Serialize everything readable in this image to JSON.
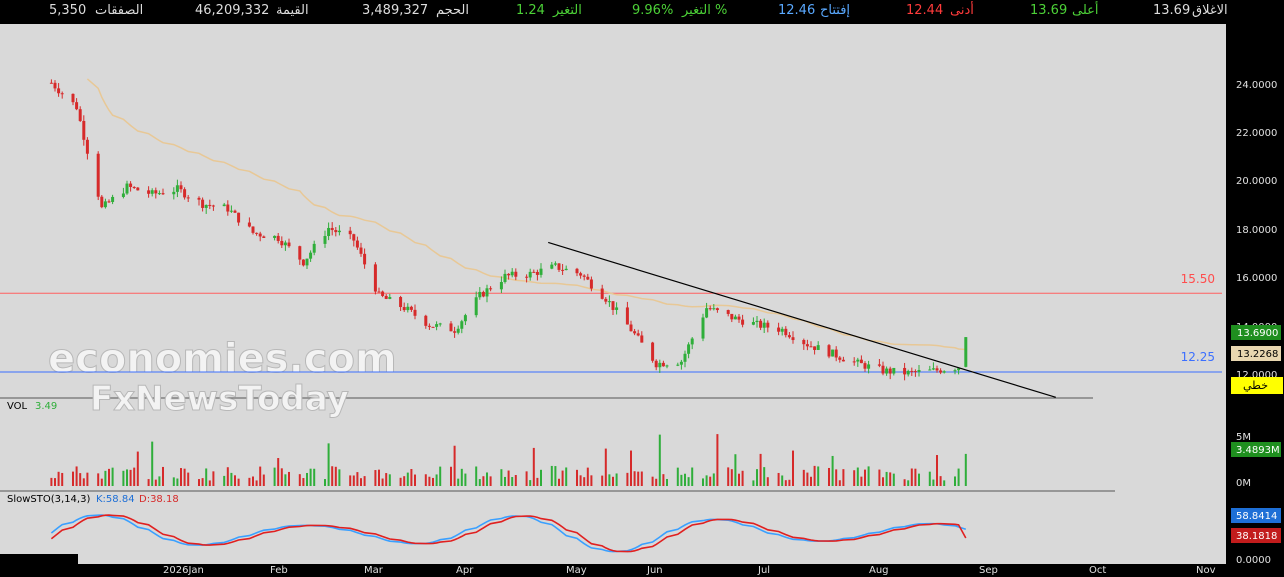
{
  "quote_bar": {
    "close_label": "الاغلاق",
    "close_value": "13.69",
    "high_label": "أعلى",
    "high_value": "13.69",
    "low_label": "أدنى",
    "low_value": "12.44",
    "open_label": "إفتتاح",
    "open_value": "12.46",
    "change_pct_label": "التغير %",
    "change_pct_value": "9.96%",
    "change_label": "التغير",
    "change_value": "1.24",
    "volume_label": "الحجم",
    "volume_value": "3,489,327",
    "value_label": "القيمة",
    "value_value": "46,209,332",
    "trades_label": "الصفقات",
    "trades_value": "5,350"
  },
  "watermark": {
    "line1": "economies.com",
    "line2": "FxNewsToday"
  },
  "price_panel": {
    "y_ticks": [
      "24.0000",
      "22.0000",
      "20.0000",
      "18.0000",
      "16.0000",
      "14.0000",
      "12.0000"
    ],
    "resistance_label": "15.50",
    "support_label": "12.25",
    "last_price_tag": "13.6900",
    "ma_tag": "13.2268",
    "trendline_tag": "خطي"
  },
  "volume_panel": {
    "label": "VOL",
    "value": "3.49",
    "y_ticks": [
      "5M",
      "0M"
    ],
    "last_tag": "3.4893M"
  },
  "stoch_panel": {
    "label": "SlowSTO(3,14,3)",
    "k_text": "K:58.84",
    "d_text": "D:38.18",
    "y_ticks": [
      "0.0000"
    ],
    "k_tag": "58.8414",
    "d_tag": "38.1818"
  },
  "x_axis": {
    "months": [
      "2026Jan",
      "Feb",
      "Mar",
      "Apr",
      "May",
      "Jun",
      "Jul",
      "Aug",
      "Sep",
      "Oct",
      "Nov"
    ]
  },
  "colors": {
    "up": "#2fae3a",
    "down": "#d62a2a",
    "ma": "#e8c896",
    "resistance": "#ff6060",
    "support": "#3b6fff",
    "k_line": "#3aa0ff",
    "d_line": "#e02020"
  },
  "chart_data": {
    "type": "candlestick",
    "series_note": "",
    "x_months": [
      "2026Jan",
      "Feb",
      "Mar",
      "Apr",
      "May",
      "Jun",
      "Jul",
      "Aug",
      "Sep",
      "Oct",
      "Nov"
    ],
    "ylim": [
      11.2,
      24.6
    ],
    "horizontal_levels": [
      15.5,
      12.25
    ],
    "trendline": [
      {
        "date": "2026-04-18",
        "price": 17.6
      },
      {
        "date": "2026-09-06",
        "price": 11.2
      }
    ],
    "price_path": [
      {
        "date": "2025-12-01",
        "price": 24.2
      },
      {
        "date": "2025-12-08",
        "price": 23.2
      },
      {
        "date": "2025-12-15",
        "price": 19.0
      },
      {
        "date": "2025-12-22",
        "price": 19.9
      },
      {
        "date": "2025-12-29",
        "price": 19.6
      },
      {
        "date": "2026-01-05",
        "price": 19.8
      },
      {
        "date": "2026-01-12",
        "price": 19.2
      },
      {
        "date": "2026-01-19",
        "price": 19.0
      },
      {
        "date": "2026-01-26",
        "price": 18.0
      },
      {
        "date": "2026-02-02",
        "price": 17.8
      },
      {
        "date": "2026-02-09",
        "price": 16.8
      },
      {
        "date": "2026-02-16",
        "price": 18.2
      },
      {
        "date": "2026-02-23",
        "price": 17.7
      },
      {
        "date": "2026-03-02",
        "price": 15.4
      },
      {
        "date": "2026-03-09",
        "price": 14.9
      },
      {
        "date": "2026-03-16",
        "price": 14.2
      },
      {
        "date": "2026-03-23",
        "price": 14.0
      },
      {
        "date": "2026-03-30",
        "price": 15.4
      },
      {
        "date": "2026-04-06",
        "price": 16.2
      },
      {
        "date": "2026-04-13",
        "price": 16.3
      },
      {
        "date": "2026-04-20",
        "price": 16.6
      },
      {
        "date": "2026-04-27",
        "price": 16.3
      },
      {
        "date": "2026-05-04",
        "price": 15.3
      },
      {
        "date": "2026-05-11",
        "price": 14.0
      },
      {
        "date": "2026-05-18",
        "price": 12.6
      },
      {
        "date": "2026-05-25",
        "price": 12.7
      },
      {
        "date": "2026-06-01",
        "price": 14.9
      },
      {
        "date": "2026-06-08",
        "price": 14.5
      },
      {
        "date": "2026-06-15",
        "price": 14.2
      },
      {
        "date": "2026-06-22",
        "price": 14.0
      },
      {
        "date": "2026-06-29",
        "price": 13.4
      },
      {
        "date": "2026-07-06",
        "price": 13.0
      },
      {
        "date": "2026-07-13",
        "price": 12.6
      },
      {
        "date": "2026-07-20",
        "price": 12.3
      },
      {
        "date": "2026-07-27",
        "price": 12.2
      },
      {
        "date": "2026-08-03",
        "price": 12.3
      },
      {
        "date": "2026-08-10",
        "price": 12.46
      },
      {
        "date": "2026-08-12",
        "price": 13.69
      }
    ],
    "volume_last_millions": 3.49,
    "stoch_last": {
      "k": 58.84,
      "d": 38.18
    }
  }
}
